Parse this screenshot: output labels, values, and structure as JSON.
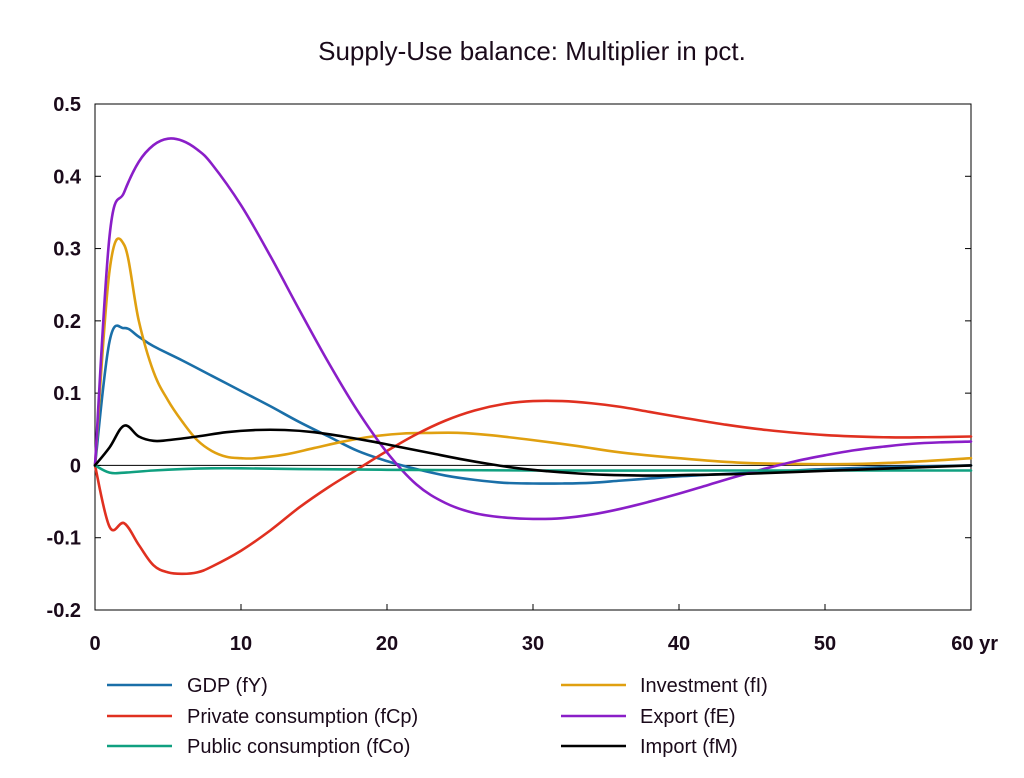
{
  "chart_data": {
    "type": "line",
    "title": "Supply-Use balance: Multiplier in pct.",
    "xlabel": "",
    "ylabel": "",
    "x_unit_label": "yr",
    "xlim": [
      0,
      60
    ],
    "ylim": [
      -0.2,
      0.5
    ],
    "x_ticks": [
      0,
      10,
      20,
      30,
      40,
      50,
      60
    ],
    "x_tick_labels": [
      "0",
      "10",
      "20",
      "30",
      "40",
      "50",
      "60 yr"
    ],
    "y_ticks": [
      -0.2,
      -0.1,
      0,
      0.1,
      0.2,
      0.3,
      0.4,
      0.5
    ],
    "y_tick_labels": [
      "-0.2",
      "-0.1",
      "0",
      "0.1",
      "0.2",
      "0.3",
      "0.4",
      "0.5"
    ],
    "grid": false,
    "legend_position": "bottom",
    "series": [
      {
        "name": "GDP (fY)",
        "color": "#1a6fa8",
        "points": [
          [
            0,
            0
          ],
          [
            1,
            0.172
          ],
          [
            2,
            0.19
          ],
          [
            3,
            0.178
          ],
          [
            4,
            0.165
          ],
          [
            6,
            0.145
          ],
          [
            8,
            0.124
          ],
          [
            10,
            0.103
          ],
          [
            12,
            0.082
          ],
          [
            14,
            0.06
          ],
          [
            16,
            0.04
          ],
          [
            18,
            0.02
          ],
          [
            20,
            0.006
          ],
          [
            22,
            -0.005
          ],
          [
            24,
            -0.014
          ],
          [
            26,
            -0.02
          ],
          [
            28,
            -0.024
          ],
          [
            30,
            -0.025
          ],
          [
            32,
            -0.025
          ],
          [
            34,
            -0.024
          ],
          [
            36,
            -0.021
          ],
          [
            38,
            -0.018
          ],
          [
            40,
            -0.015
          ],
          [
            42,
            -0.013
          ],
          [
            45,
            -0.01
          ],
          [
            48,
            -0.007
          ],
          [
            50,
            -0.005
          ],
          [
            55,
            -0.002
          ],
          [
            60,
            0.0
          ]
        ]
      },
      {
        "name": "Investment (fI)",
        "color": "#e0a010",
        "points": [
          [
            0,
            0
          ],
          [
            1,
            0.27
          ],
          [
            2,
            0.305
          ],
          [
            3,
            0.2
          ],
          [
            4,
            0.13
          ],
          [
            5,
            0.09
          ],
          [
            6,
            0.06
          ],
          [
            7,
            0.035
          ],
          [
            8,
            0.02
          ],
          [
            9,
            0.012
          ],
          [
            10,
            0.01
          ],
          [
            11,
            0.01
          ],
          [
            13,
            0.015
          ],
          [
            15,
            0.024
          ],
          [
            17,
            0.033
          ],
          [
            19,
            0.04
          ],
          [
            21,
            0.044
          ],
          [
            23,
            0.045
          ],
          [
            25,
            0.045
          ],
          [
            27,
            0.042
          ],
          [
            30,
            0.035
          ],
          [
            33,
            0.027
          ],
          [
            36,
            0.018
          ],
          [
            40,
            0.01
          ],
          [
            44,
            0.004
          ],
          [
            48,
            0.002
          ],
          [
            52,
            0.002
          ],
          [
            56,
            0.005
          ],
          [
            60,
            0.01
          ]
        ]
      },
      {
        "name": "Private consumption (fCp)",
        "color": "#e03020",
        "points": [
          [
            0,
            0
          ],
          [
            1,
            -0.085
          ],
          [
            2,
            -0.08
          ],
          [
            3,
            -0.11
          ],
          [
            4,
            -0.138
          ],
          [
            5,
            -0.148
          ],
          [
            6,
            -0.15
          ],
          [
            7,
            -0.148
          ],
          [
            8,
            -0.14
          ],
          [
            10,
            -0.118
          ],
          [
            12,
            -0.09
          ],
          [
            14,
            -0.058
          ],
          [
            16,
            -0.03
          ],
          [
            18,
            -0.005
          ],
          [
            20,
            0.02
          ],
          [
            22,
            0.043
          ],
          [
            24,
            0.062
          ],
          [
            26,
            0.076
          ],
          [
            28,
            0.085
          ],
          [
            30,
            0.089
          ],
          [
            32,
            0.089
          ],
          [
            34,
            0.086
          ],
          [
            36,
            0.081
          ],
          [
            38,
            0.074
          ],
          [
            40,
            0.067
          ],
          [
            43,
            0.057
          ],
          [
            46,
            0.049
          ],
          [
            50,
            0.042
          ],
          [
            54,
            0.039
          ],
          [
            57,
            0.039
          ],
          [
            60,
            0.04
          ]
        ]
      },
      {
        "name": "Export (fE)",
        "color": "#8a1ec8",
        "points": [
          [
            0,
            0
          ],
          [
            1,
            0.318
          ],
          [
            2,
            0.378
          ],
          [
            3,
            0.42
          ],
          [
            4,
            0.443
          ],
          [
            5,
            0.452
          ],
          [
            6,
            0.449
          ],
          [
            7,
            0.437
          ],
          [
            8,
            0.417
          ],
          [
            10,
            0.36
          ],
          [
            12,
            0.29
          ],
          [
            14,
            0.215
          ],
          [
            16,
            0.142
          ],
          [
            18,
            0.075
          ],
          [
            20,
            0.018
          ],
          [
            22,
            -0.026
          ],
          [
            24,
            -0.052
          ],
          [
            26,
            -0.066
          ],
          [
            28,
            -0.072
          ],
          [
            30,
            -0.074
          ],
          [
            32,
            -0.073
          ],
          [
            34,
            -0.068
          ],
          [
            36,
            -0.06
          ],
          [
            38,
            -0.05
          ],
          [
            40,
            -0.039
          ],
          [
            42,
            -0.027
          ],
          [
            44,
            -0.015
          ],
          [
            46,
            -0.004
          ],
          [
            48,
            0.006
          ],
          [
            50,
            0.014
          ],
          [
            52,
            0.021
          ],
          [
            54,
            0.026
          ],
          [
            56,
            0.03
          ],
          [
            58,
            0.032
          ],
          [
            60,
            0.033
          ]
        ]
      },
      {
        "name": "Public consumption (fCo)",
        "color": "#10a080",
        "points": [
          [
            0,
            0
          ],
          [
            1,
            -0.01
          ],
          [
            2,
            -0.01
          ],
          [
            4,
            -0.007
          ],
          [
            6,
            -0.005
          ],
          [
            8,
            -0.004
          ],
          [
            10,
            -0.004
          ],
          [
            14,
            -0.005
          ],
          [
            20,
            -0.006
          ],
          [
            30,
            -0.007
          ],
          [
            40,
            -0.007
          ],
          [
            50,
            -0.007
          ],
          [
            60,
            -0.007
          ]
        ]
      },
      {
        "name": "Import (fM)",
        "color": "#000000",
        "points": [
          [
            0,
            0
          ],
          [
            1,
            0.025
          ],
          [
            2,
            0.055
          ],
          [
            3,
            0.04
          ],
          [
            4,
            0.034
          ],
          [
            5,
            0.035
          ],
          [
            7,
            0.04
          ],
          [
            9,
            0.046
          ],
          [
            11,
            0.049
          ],
          [
            13,
            0.049
          ],
          [
            15,
            0.046
          ],
          [
            17,
            0.04
          ],
          [
            19,
            0.033
          ],
          [
            21,
            0.025
          ],
          [
            23,
            0.017
          ],
          [
            25,
            0.009
          ],
          [
            27,
            0.002
          ],
          [
            29,
            -0.004
          ],
          [
            31,
            -0.008
          ],
          [
            33,
            -0.011
          ],
          [
            35,
            -0.013
          ],
          [
            38,
            -0.014
          ],
          [
            41,
            -0.013
          ],
          [
            44,
            -0.012
          ],
          [
            48,
            -0.009
          ],
          [
            52,
            -0.006
          ],
          [
            56,
            -0.003
          ],
          [
            60,
            0.0
          ]
        ]
      }
    ]
  },
  "legend": {
    "items": [
      {
        "label": "GDP (fY)",
        "color": "#1a6fa8"
      },
      {
        "label": "Private consumption (fCp)",
        "color": "#e03020"
      },
      {
        "label": "Public consumption (fCo)",
        "color": "#10a080"
      },
      {
        "label": "Investment (fI)",
        "color": "#e0a010"
      },
      {
        "label": "Export (fE)",
        "color": "#8a1ec8"
      },
      {
        "label": "Import (fM)",
        "color": "#000000"
      }
    ]
  }
}
